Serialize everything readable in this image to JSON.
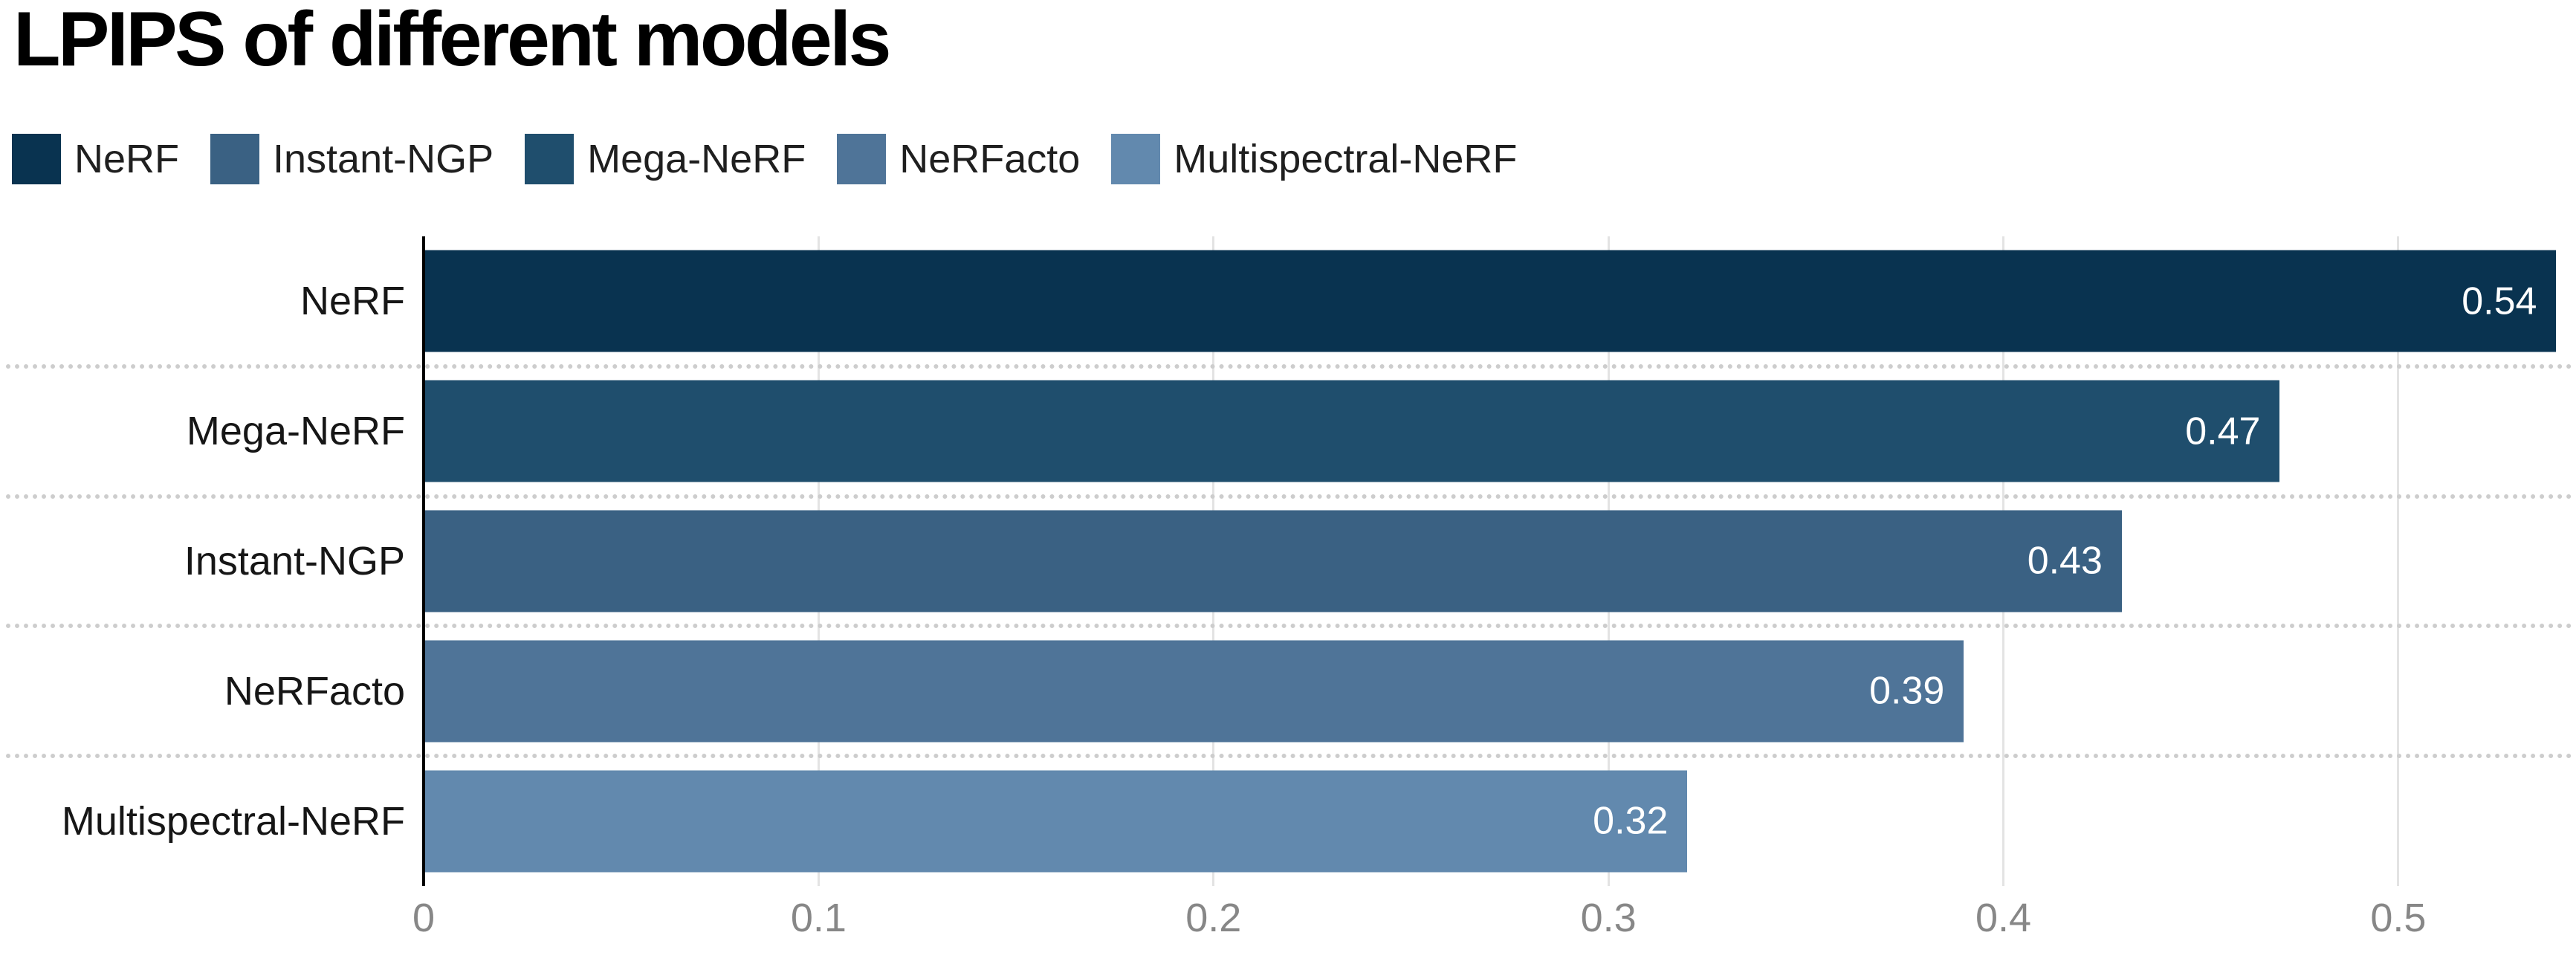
{
  "title": "LPIPS of different models",
  "legend": [
    {
      "label": "NeRF",
      "color": "#093350"
    },
    {
      "label": "Instant-NGP",
      "color": "#3a6183"
    },
    {
      "label": "Mega-NeRF",
      "color": "#1f4e6d"
    },
    {
      "label": "NeRFacto",
      "color": "#4f7498"
    },
    {
      "label": "Multispectral-NeRF",
      "color": "#6289ae"
    }
  ],
  "chart_data": {
    "type": "bar",
    "orientation": "horizontal",
    "title": "LPIPS of different models",
    "categories": [
      "NeRF",
      "Mega-NeRF",
      "Instant-NGP",
      "NeRFacto",
      "Multispectral-NeRF"
    ],
    "values": [
      0.54,
      0.47,
      0.43,
      0.39,
      0.32
    ],
    "value_labels": [
      "0.54",
      "0.47",
      "0.43",
      "0.39",
      "0.32"
    ],
    "bar_colors": [
      "#093350",
      "#1f4e6d",
      "#3a6183",
      "#4f7498",
      "#6289ae"
    ],
    "xlabel": "",
    "ylabel": "",
    "xlim": [
      0,
      0.545
    ],
    "x_ticks": [
      0,
      0.1,
      0.2,
      0.3,
      0.4,
      0.5
    ],
    "x_tick_labels": [
      "0",
      "0.1",
      "0.2",
      "0.3",
      "0.4",
      "0.5"
    ],
    "legend_position": "top",
    "grid": "vertical-light-gray",
    "row_separators": "dotted"
  },
  "colors": {
    "background": "#ffffff",
    "title_text": "#000000",
    "category_text": "#161616",
    "value_text": "#ffffff",
    "tick_text": "#878787",
    "gridline": "#e3e3e3",
    "separator": "#cdcdcd",
    "axis_line": "#000000"
  }
}
